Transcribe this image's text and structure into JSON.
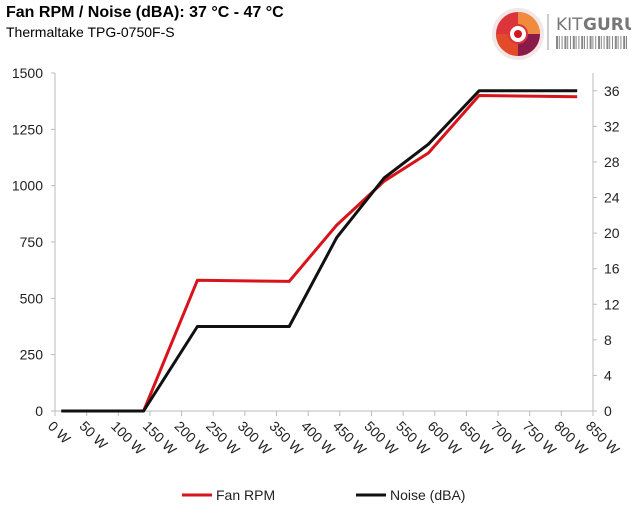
{
  "chart_data": {
    "type": "line",
    "title": "Fan RPM / Noise (dBA): 37 °C - 47 °C",
    "subtitle": "Thermaltake TPG-0750F-S",
    "x_tick_labels": [
      "0 W",
      "50 W",
      "100 W",
      "150 W",
      "200 W",
      "250 W",
      "300 W",
      "350 W",
      "400 W",
      "450 W",
      "500 W",
      "550 W",
      "600 W",
      "650 W",
      "700 W",
      "750 W",
      "800 W",
      "850 W"
    ],
    "x_ticks": [
      0,
      50,
      100,
      150,
      200,
      250,
      300,
      350,
      400,
      450,
      500,
      550,
      600,
      650,
      700,
      750,
      800,
      850
    ],
    "xlim": [
      0,
      850
    ],
    "ylim_left": [
      0,
      1500
    ],
    "y_left_ticks": [
      0,
      250,
      500,
      750,
      1000,
      1250,
      1500
    ],
    "ylim_right": [
      0,
      38
    ],
    "y_right_ticks": [
      0,
      4,
      8,
      12,
      16,
      20,
      24,
      28,
      32,
      36
    ],
    "grid": false,
    "legend_position": "bottom",
    "series": [
      {
        "name": "Fan RPM",
        "axis": "left",
        "color": "#d7141c",
        "x": [
          10,
          140,
          225,
          370,
          445,
          520,
          590,
          670,
          825
        ],
        "values": [
          0,
          0,
          580,
          575,
          825,
          1020,
          1145,
          1400,
          1395
        ]
      },
      {
        "name": "Noise (dBA)",
        "axis": "right",
        "color": "#111111",
        "x": [
          10,
          140,
          225,
          370,
          445,
          520,
          590,
          670,
          825
        ],
        "values": [
          0,
          0,
          9.5,
          9.5,
          19.5,
          26.2,
          30.0,
          36.0,
          36.0
        ]
      }
    ]
  },
  "logo": {
    "text_kit": "KIT",
    "text_guru": "GURU",
    "accent_color": "#d7141c",
    "logo_icon": "kitguru-swirl-icon"
  }
}
